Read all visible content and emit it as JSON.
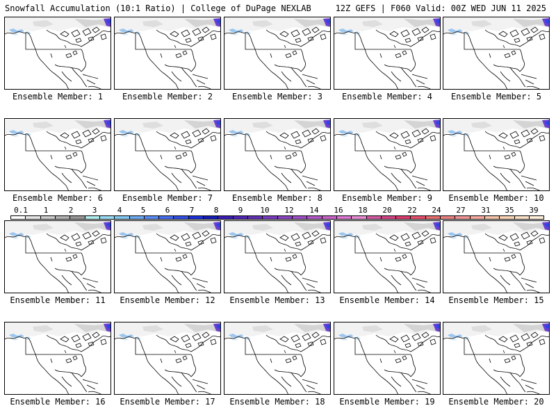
{
  "header": {
    "title_left": "Snowfall Accumulation (10:1 Ratio) | College of DuPage NEXLAB",
    "title_right": "12Z GEFS | F060 Valid: 00Z WED JUN 11 2025"
  },
  "panels": [
    {
      "label": "Ensemble Member: 1"
    },
    {
      "label": "Ensemble Member: 2"
    },
    {
      "label": "Ensemble Member: 3"
    },
    {
      "label": "Ensemble Member: 4"
    },
    {
      "label": "Ensemble Member: 5"
    },
    {
      "label": "Ensemble Member: 6"
    },
    {
      "label": "Ensemble Member: 7"
    },
    {
      "label": "Ensemble Member: 8"
    },
    {
      "label": "Ensemble Member: 9"
    },
    {
      "label": "Ensemble Member: 10"
    },
    {
      "label": "Ensemble Member: 11"
    },
    {
      "label": "Ensemble Member: 12"
    },
    {
      "label": "Ensemble Member: 13"
    },
    {
      "label": "Ensemble Member: 14"
    },
    {
      "label": "Ensemble Member: 15"
    },
    {
      "label": "Ensemble Member: 16"
    },
    {
      "label": "Ensemble Member: 17"
    },
    {
      "label": "Ensemble Member: 18"
    },
    {
      "label": "Ensemble Member: 19"
    },
    {
      "label": "Ensemble Member: 20"
    }
  ],
  "colorbar": {
    "labels": [
      "0.1",
      "1",
      "2",
      "3",
      "4",
      "5",
      "6",
      "7",
      "8",
      "9",
      "10",
      "12",
      "14",
      "16",
      "18",
      "20",
      "22",
      "24",
      "27",
      "31",
      "35",
      "39"
    ],
    "colors": [
      "#ffffff",
      "#e6e6e6",
      "#cccccc",
      "#b3b3b3",
      "#999999",
      "#b2f0f0",
      "#99ddf5",
      "#82c8f0",
      "#6eaaf0",
      "#5a8cf5",
      "#466ef0",
      "#3250e6",
      "#1e32dc",
      "#141eb4",
      "#3c1eb4",
      "#5028b4",
      "#6432b4",
      "#783cbe",
      "#8c46c3",
      "#a050c8",
      "#b45ac8",
      "#c864c8",
      "#dc78d2",
      "#e68cd2",
      "#d25aa0",
      "#d24687",
      "#dc3c6e",
      "#e6506e",
      "#e66e6e",
      "#eb8282",
      "#f09696",
      "#f5aaa0",
      "#f5c3aa",
      "#fad2b4",
      "#fae1c8",
      "#fff0dc"
    ]
  }
}
